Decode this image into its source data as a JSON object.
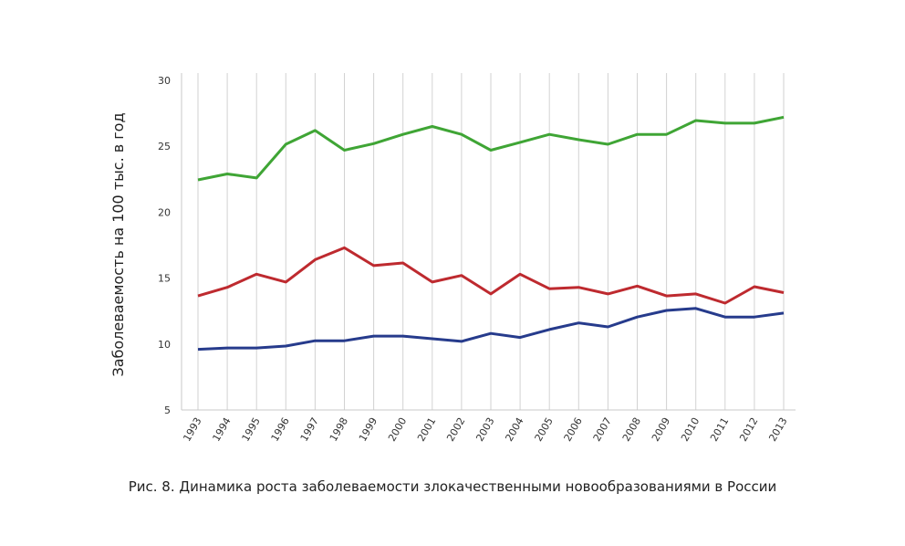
{
  "chart_data": {
    "type": "line",
    "title": "",
    "xlabel": "",
    "ylabel": "Заболеваемость на 100 тыс. в год",
    "ylim": [
      5,
      30
    ],
    "yticks": [
      "5",
      "10",
      "15",
      "20",
      "25",
      "30"
    ],
    "grid": "vertical",
    "legend": "none",
    "x": [
      "1993",
      "1994",
      "1995",
      "1996",
      "1997",
      "1998",
      "1999",
      "2000",
      "2001",
      "2002",
      "2003",
      "2004",
      "2005",
      "2006",
      "2007",
      "2008",
      "2009",
      "2010",
      "2011",
      "2012",
      "2013"
    ],
    "series": [
      {
        "color": "#3fa535",
        "values": [
          22.45,
          22.9,
          22.6,
          25.15,
          26.2,
          24.7,
          25.2,
          25.9,
          26.5,
          25.9,
          24.7,
          25.3,
          25.9,
          25.5,
          25.15,
          25.9,
          25.9,
          26.95,
          26.75,
          26.75,
          27.2
        ]
      },
      {
        "color": "#be2a2f",
        "values": [
          13.65,
          14.3,
          15.3,
          14.7,
          16.4,
          17.3,
          15.95,
          16.15,
          14.7,
          15.2,
          13.8,
          15.3,
          14.2,
          14.3,
          13.8,
          14.4,
          13.65,
          13.8,
          13.1,
          14.35,
          13.9
        ]
      },
      {
        "color": "#263b8c",
        "values": [
          9.6,
          9.7,
          9.7,
          9.85,
          10.25,
          10.25,
          10.6,
          10.6,
          10.4,
          10.2,
          10.8,
          10.5,
          11.1,
          11.6,
          11.3,
          12.05,
          12.55,
          12.7,
          12.05,
          12.05,
          12.35
        ]
      }
    ]
  },
  "caption": "Рис. 8. Динамика роста заболеваемости злокачественными новообразованиями в России"
}
